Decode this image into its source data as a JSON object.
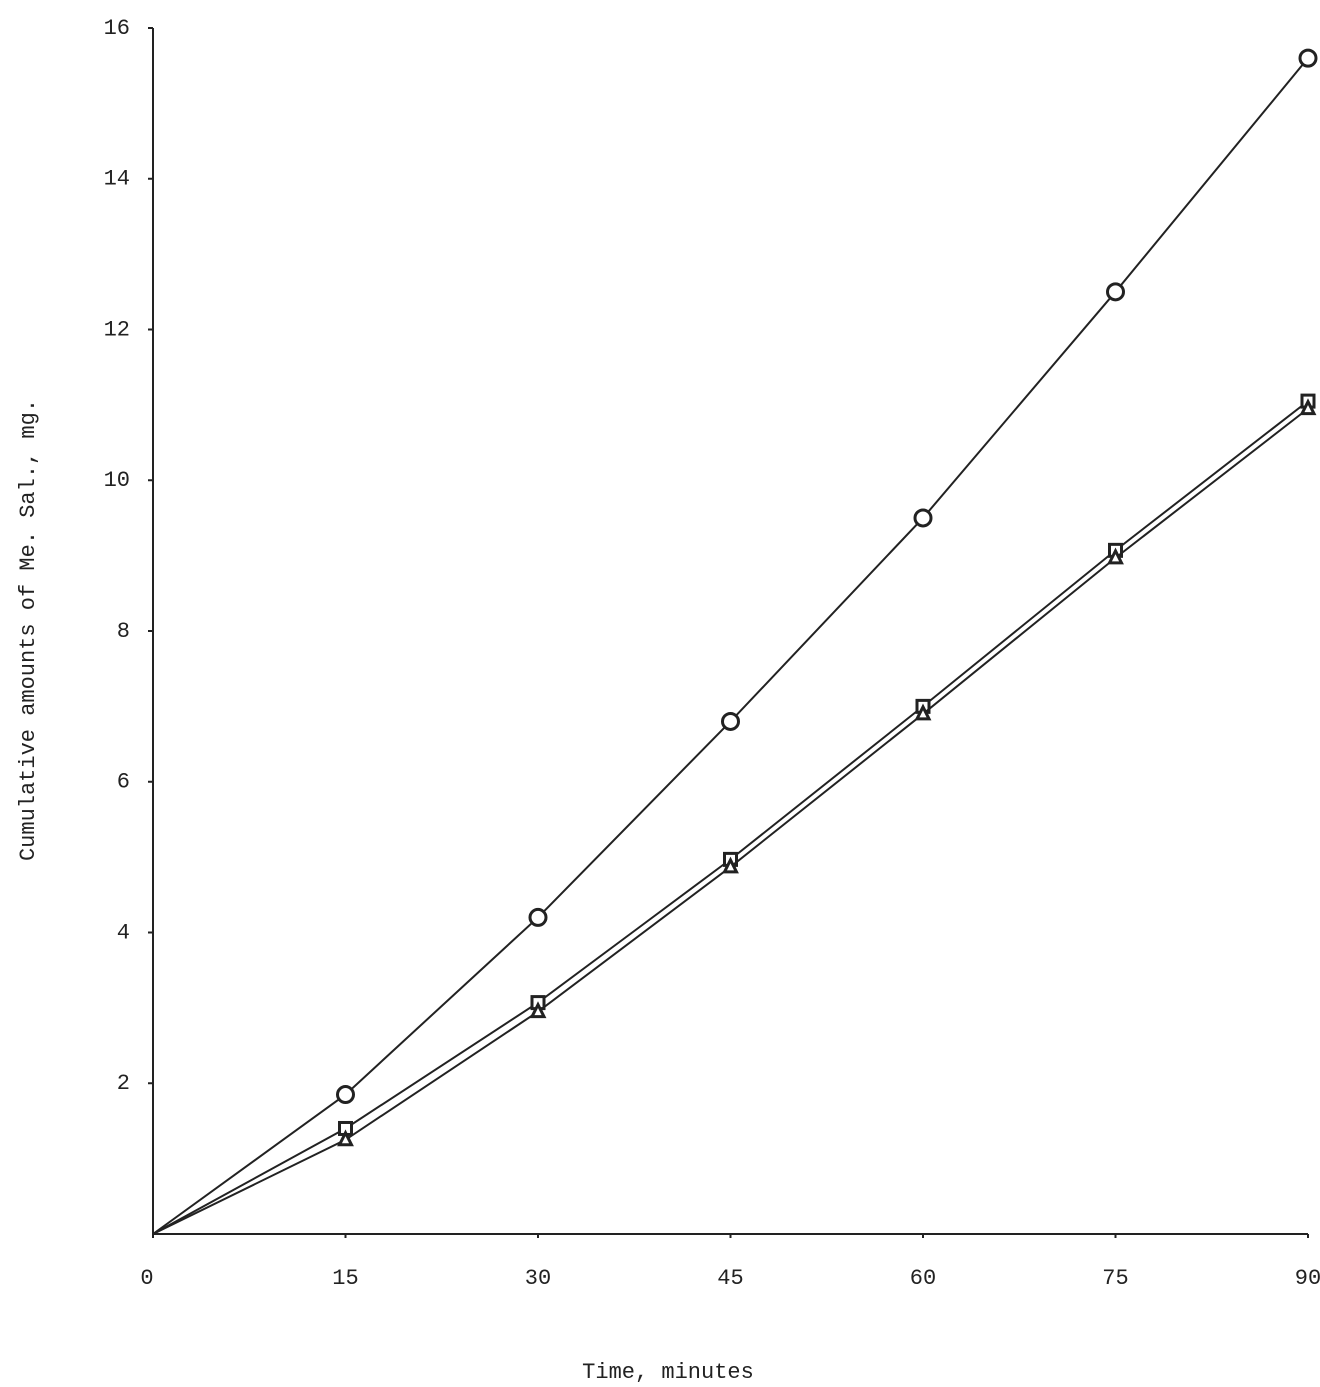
{
  "chart_data": {
    "type": "line",
    "x_label": "Time, minutes",
    "y_label": "Cumulative amounts of Me. Sal., mg.",
    "x": [
      0,
      15,
      30,
      45,
      60,
      75,
      90
    ],
    "series": [
      {
        "marker": "circle",
        "color": "#222222",
        "values": [
          0,
          1.85,
          4.2,
          6.8,
          9.5,
          12.5,
          15.6
        ]
      },
      {
        "marker": "square",
        "color": "#222222",
        "values": [
          0,
          1.4,
          3.07,
          4.97,
          7.0,
          9.07,
          11.05
        ]
      },
      {
        "marker": "triangle",
        "color": "#222222",
        "values": [
          0,
          1.25,
          2.95,
          4.87,
          6.9,
          8.97,
          10.95
        ]
      }
    ],
    "xlim": [
      0,
      90
    ],
    "xticks": [
      0,
      15,
      30,
      45,
      60,
      75,
      90
    ],
    "ylim": [
      0,
      16
    ],
    "yticks": [
      2,
      4,
      6,
      8,
      10,
      12,
      14,
      16
    ],
    "grid": false
  }
}
